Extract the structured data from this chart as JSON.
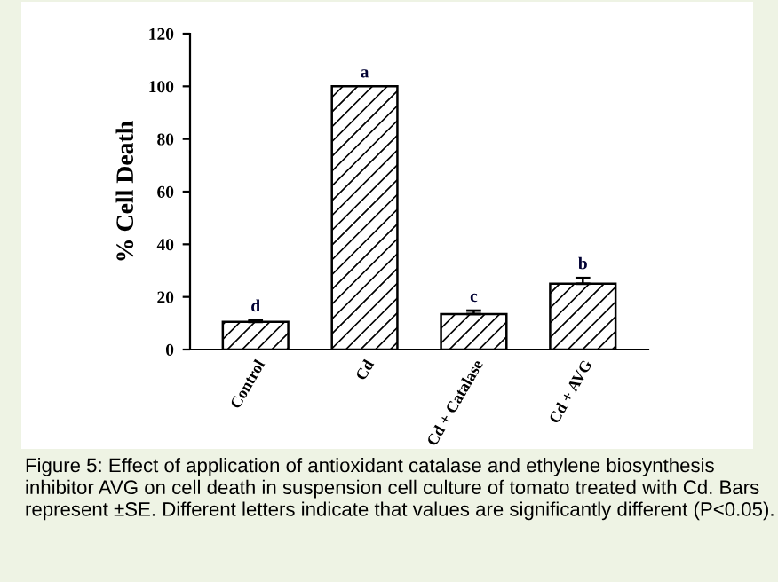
{
  "chart_data": {
    "type": "bar",
    "ylabel": "% Cell Death",
    "categories": [
      "Control",
      "Cd",
      "Cd + Catalase",
      "Cd + AVG"
    ],
    "values": [
      10.5,
      100,
      13.5,
      25
    ],
    "errors": [
      0.6,
      null,
      1.3,
      2.2
    ],
    "value_labels": [
      "d",
      "a",
      "c",
      "b"
    ],
    "color": "#000000",
    "ylim": [
      0,
      120
    ],
    "yticks": [
      0,
      20,
      40,
      60,
      80,
      100,
      120
    ],
    "grid": false,
    "legend": false,
    "annotations": [
      "Figure 5: Effect of application of antioxidant catalase and ethylene biosynthesis inhibitor AVG on cell death in suspension cell culture of tomato treated with Cd. Bars represent ±SE. Different letters indicate that values are significantly different (P<0.05)."
    ]
  }
}
